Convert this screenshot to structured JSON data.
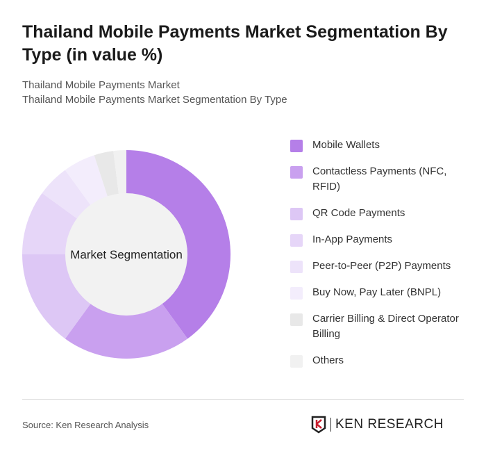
{
  "title": "Thailand Mobile Payments Market Segmentation By Type (in value %)",
  "subtitle1": "Thailand Mobile Payments Market",
  "subtitle2": "Thailand Mobile Payments Market Segmentation By Type",
  "source": "Source: Ken Research Analysis",
  "logo_text": "KEN RESEARCH",
  "chart_data": {
    "type": "pie",
    "donut": true,
    "center_label": "Market Segmentation",
    "legend_position": "right",
    "categories": [
      "Mobile Wallets",
      "Contactless Payments (NFC, RFID)",
      "QR Code Payments",
      "In-App Payments",
      "Peer-to-Peer (P2P) Payments",
      "Buy Now, Pay Later (BNPL)",
      "Carrier Billing & Direct Operator Billing",
      "Others"
    ],
    "values": [
      40,
      20,
      15,
      10,
      5,
      5,
      3,
      2
    ],
    "colors": [
      "#b57fe8",
      "#c9a0ef",
      "#ddc7f5",
      "#e6d6f8",
      "#ede3fa",
      "#f3edfc",
      "#e8e8e8",
      "#f1f1f1"
    ]
  }
}
